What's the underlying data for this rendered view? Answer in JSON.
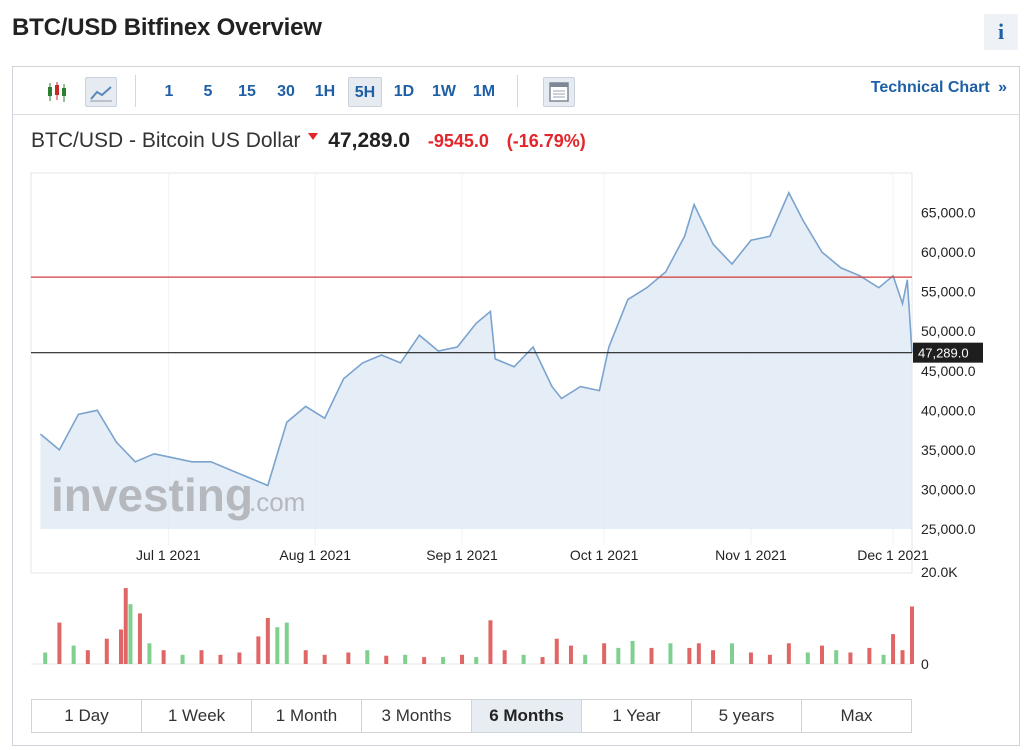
{
  "page": {
    "title": "BTC/USD Bitfinex Overview",
    "info_icon": "i"
  },
  "toolbar": {
    "timeframes": [
      "1",
      "5",
      "15",
      "30",
      "1H",
      "5H",
      "1D",
      "1W",
      "1M"
    ],
    "active_timeframe": "5H",
    "technical_link": "Technical Chart",
    "technical_arrow": "»",
    "icons": [
      "candlestick-icon",
      "line-chart-icon",
      "calendar-icon"
    ]
  },
  "quote": {
    "label": "BTC/USD - Bitcoin US Dollar",
    "price": "47,289.0",
    "change": "-9545.0",
    "change_pct": "(-16.79%)"
  },
  "watermark": {
    "brand": "investing",
    "suffix": ".com"
  },
  "chart_data": {
    "type": "area",
    "series": [
      {
        "x": [
          "2021-06-04",
          "2021-06-08",
          "2021-06-12",
          "2021-06-16",
          "2021-06-20",
          "2021-06-24",
          "2021-06-28",
          "2021-07-02",
          "2021-07-06",
          "2021-07-10",
          "2021-07-14",
          "2021-07-18",
          "2021-07-22",
          "2021-07-26",
          "2021-07-30",
          "2021-08-03",
          "2021-08-07",
          "2021-08-11",
          "2021-08-15",
          "2021-08-19",
          "2021-08-23",
          "2021-08-27",
          "2021-08-31",
          "2021-09-04",
          "2021-09-07",
          "2021-09-08",
          "2021-09-12",
          "2021-09-16",
          "2021-09-20",
          "2021-09-22",
          "2021-09-26",
          "2021-09-30",
          "2021-10-02",
          "2021-10-06",
          "2021-10-10",
          "2021-10-14",
          "2021-10-18",
          "2021-10-20",
          "2021-10-24",
          "2021-10-28",
          "2021-11-01",
          "2021-11-05",
          "2021-11-09",
          "2021-11-12",
          "2021-11-16",
          "2021-11-20",
          "2021-11-24",
          "2021-11-28",
          "2021-12-01",
          "2021-12-03",
          "2021-12-04",
          "2021-12-05"
        ],
        "y": [
          37000,
          35000,
          39500,
          40000,
          36000,
          33500,
          34500,
          34000,
          33500,
          33500,
          32500,
          31500,
          30500,
          38500,
          40500,
          39000,
          44000,
          46000,
          47000,
          46000,
          49500,
          47500,
          48000,
          51000,
          52500,
          46500,
          45500,
          48000,
          43000,
          41500,
          43000,
          42500,
          48000,
          54000,
          55500,
          57500,
          62000,
          66000,
          61000,
          58500,
          61500,
          62000,
          67500,
          64000,
          60000,
          58000,
          57000,
          55500,
          57000,
          53500,
          56500,
          47289
        ],
        "area_fill": "#dce7f3",
        "line_color": "#7ba3cf"
      }
    ],
    "ylim": [
      25000,
      70000
    ],
    "y_ticks": [
      "65,000.0",
      "60,000.0",
      "55,000.0",
      "50,000.0",
      "45,000.0",
      "40,000.0",
      "35,000.0",
      "30,000.0",
      "25,000.0"
    ],
    "y_tick_values": [
      65000,
      60000,
      55000,
      50000,
      45000,
      40000,
      35000,
      30000,
      25000
    ],
    "x_ticks": [
      "Jul 1 2021",
      "Aug 1 2021",
      "Sep 1 2021",
      "Oct 1 2021",
      "Nov 1 2021",
      "Dec 1 2021"
    ],
    "x_tick_dates": [
      "2021-07-01",
      "2021-08-01",
      "2021-09-01",
      "2021-10-01",
      "2021-11-01",
      "2021-12-01"
    ],
    "x_range": [
      "2021-06-02",
      "2021-12-05"
    ],
    "reference_lines": [
      {
        "value": 56834,
        "color": "#d23c3c"
      },
      {
        "value": 47289,
        "color": "#222222",
        "label": "47,289.0"
      }
    ],
    "volume": {
      "ylim": [
        0,
        20000
      ],
      "y_ticks": [
        "20.0K",
        "0"
      ],
      "up_color": "#7fcf8f",
      "down_color": "#e06666",
      "bars": [
        {
          "x": "2021-06-05",
          "v": 2500,
          "d": "up"
        },
        {
          "x": "2021-06-08",
          "v": 9000,
          "d": "down"
        },
        {
          "x": "2021-06-11",
          "v": 4000,
          "d": "up"
        },
        {
          "x": "2021-06-14",
          "v": 3000,
          "d": "down"
        },
        {
          "x": "2021-06-18",
          "v": 5500,
          "d": "down"
        },
        {
          "x": "2021-06-21",
          "v": 7500,
          "d": "down"
        },
        {
          "x": "2021-06-22",
          "v": 16500,
          "d": "down"
        },
        {
          "x": "2021-06-23",
          "v": 13000,
          "d": "up"
        },
        {
          "x": "2021-06-25",
          "v": 11000,
          "d": "down"
        },
        {
          "x": "2021-06-27",
          "v": 4500,
          "d": "up"
        },
        {
          "x": "2021-06-30",
          "v": 3000,
          "d": "down"
        },
        {
          "x": "2021-07-04",
          "v": 2000,
          "d": "up"
        },
        {
          "x": "2021-07-08",
          "v": 3000,
          "d": "down"
        },
        {
          "x": "2021-07-12",
          "v": 2000,
          "d": "down"
        },
        {
          "x": "2021-07-16",
          "v": 2500,
          "d": "down"
        },
        {
          "x": "2021-07-20",
          "v": 6000,
          "d": "down"
        },
        {
          "x": "2021-07-22",
          "v": 10000,
          "d": "down"
        },
        {
          "x": "2021-07-24",
          "v": 8000,
          "d": "up"
        },
        {
          "x": "2021-07-26",
          "v": 9000,
          "d": "up"
        },
        {
          "x": "2021-07-30",
          "v": 3000,
          "d": "down"
        },
        {
          "x": "2021-08-03",
          "v": 2000,
          "d": "down"
        },
        {
          "x": "2021-08-08",
          "v": 2500,
          "d": "down"
        },
        {
          "x": "2021-08-12",
          "v": 3000,
          "d": "up"
        },
        {
          "x": "2021-08-16",
          "v": 1800,
          "d": "down"
        },
        {
          "x": "2021-08-20",
          "v": 2000,
          "d": "up"
        },
        {
          "x": "2021-08-24",
          "v": 1500,
          "d": "down"
        },
        {
          "x": "2021-08-28",
          "v": 1500,
          "d": "up"
        },
        {
          "x": "2021-09-01",
          "v": 2000,
          "d": "down"
        },
        {
          "x": "2021-09-04",
          "v": 1500,
          "d": "up"
        },
        {
          "x": "2021-09-07",
          "v": 9500,
          "d": "down"
        },
        {
          "x": "2021-09-10",
          "v": 3000,
          "d": "down"
        },
        {
          "x": "2021-09-14",
          "v": 2000,
          "d": "up"
        },
        {
          "x": "2021-09-18",
          "v": 1500,
          "d": "down"
        },
        {
          "x": "2021-09-21",
          "v": 5500,
          "d": "down"
        },
        {
          "x": "2021-09-24",
          "v": 4000,
          "d": "down"
        },
        {
          "x": "2021-09-27",
          "v": 2000,
          "d": "up"
        },
        {
          "x": "2021-10-01",
          "v": 4500,
          "d": "down"
        },
        {
          "x": "2021-10-04",
          "v": 3500,
          "d": "up"
        },
        {
          "x": "2021-10-07",
          "v": 5000,
          "d": "up"
        },
        {
          "x": "2021-10-11",
          "v": 3500,
          "d": "down"
        },
        {
          "x": "2021-10-15",
          "v": 4500,
          "d": "up"
        },
        {
          "x": "2021-10-19",
          "v": 3500,
          "d": "down"
        },
        {
          "x": "2021-10-21",
          "v": 4500,
          "d": "down"
        },
        {
          "x": "2021-10-24",
          "v": 3000,
          "d": "down"
        },
        {
          "x": "2021-10-28",
          "v": 4500,
          "d": "up"
        },
        {
          "x": "2021-11-01",
          "v": 2500,
          "d": "down"
        },
        {
          "x": "2021-11-05",
          "v": 2000,
          "d": "down"
        },
        {
          "x": "2021-11-09",
          "v": 4500,
          "d": "down"
        },
        {
          "x": "2021-11-13",
          "v": 2500,
          "d": "up"
        },
        {
          "x": "2021-11-16",
          "v": 4000,
          "d": "down"
        },
        {
          "x": "2021-11-19",
          "v": 3000,
          "d": "up"
        },
        {
          "x": "2021-11-22",
          "v": 2500,
          "d": "down"
        },
        {
          "x": "2021-11-26",
          "v": 3500,
          "d": "down"
        },
        {
          "x": "2021-11-29",
          "v": 2000,
          "d": "up"
        },
        {
          "x": "2021-12-01",
          "v": 6500,
          "d": "down"
        },
        {
          "x": "2021-12-03",
          "v": 3000,
          "d": "down"
        },
        {
          "x": "2021-12-05",
          "v": 12500,
          "d": "down"
        }
      ]
    }
  },
  "ranges": {
    "items": [
      "1 Day",
      "1 Week",
      "1 Month",
      "3 Months",
      "6 Months",
      "1 Year",
      "5 years",
      "Max"
    ],
    "active": "6 Months"
  }
}
